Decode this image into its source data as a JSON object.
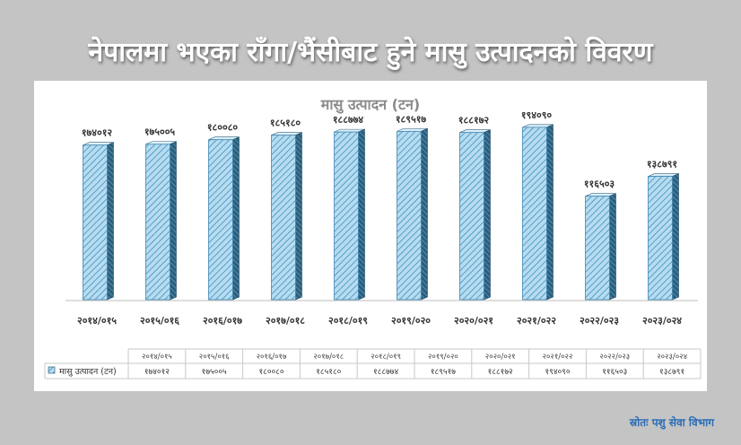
{
  "headline": "नेपालमा भएका राँगा/भैंसीबाट हुने मासु उत्पादनको विवरण",
  "source": "स्रोतः पशु सेवा विभाग",
  "colors": {
    "background": "#c4c4c4",
    "bar_front": "#b7dcef",
    "bar_hatch": "#4a98c7",
    "bar_side": "#2a5f7d",
    "title": "#8a8a8a",
    "source": "#2a6db5"
  },
  "chart_data": {
    "type": "bar",
    "title": "मासु उत्पादन (टन)",
    "xlabel": "",
    "ylabel": "",
    "ylim": [
      0,
      200000
    ],
    "grid": false,
    "categories": [
      "२०१४/०१५",
      "२०१५/०१६",
      "२०१६/०१७",
      "२०१७/०१८",
      "२०१८/०१९",
      "२०१९/०२०",
      "२०२०/०२१",
      "२०२१/०२२",
      "२०२२/०२३",
      "२०२३/०२४"
    ],
    "values": [
      174012,
      175005,
      180080,
      185180,
      188774,
      189517,
      188172,
      194090,
      116503,
      138791
    ],
    "value_labels": [
      "१७४०१२",
      "१७५००५",
      "१८००८०",
      "१८५१८०",
      "१८८७७४",
      "१८९५१७",
      "१८८१७२",
      "१९४०९०",
      "११६५०३",
      "१३८७९१"
    ],
    "table": {
      "row_label": "मासु उत्पादन (टन)",
      "legend_icon": "hatched-square-icon"
    }
  }
}
